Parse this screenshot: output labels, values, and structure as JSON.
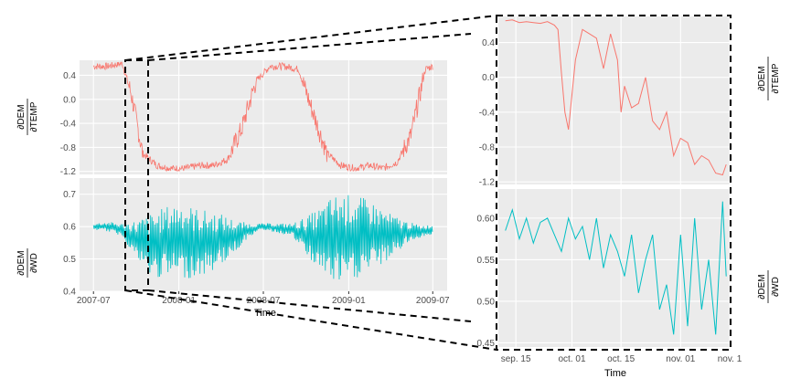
{
  "chart_data": [
    {
      "type": "line",
      "title": "",
      "xlabel": "Time",
      "x_ticks": [
        "2007-07",
        "2008-01",
        "2008-07",
        "2009-01",
        "2009-07"
      ],
      "x_range": [
        "2007-06-01",
        "2009-08-01"
      ],
      "panels": [
        {
          "name": "TEMP",
          "ylabel_numerator": "∂DEM",
          "ylabel_denominator": "∂TEMP",
          "y_ticks": [
            "0.4",
            "0.0",
            "-0.4",
            "-0.8",
            "-1.2"
          ],
          "ylim": [
            -1.25,
            0.65
          ],
          "color": "#F8766D",
          "series": [
            {
              "x": [
                "2007-07-01",
                "2007-08-01",
                "2007-09-01",
                "2007-09-20",
                "2007-10-15",
                "2007-11-15",
                "2007-12-15",
                "2008-01-15",
                "2008-02-15",
                "2008-03-15",
                "2008-04-15",
                "2008-05-15",
                "2008-06-15",
                "2008-07-15",
                "2008-08-15",
                "2008-09-15",
                "2008-10-15",
                "2008-11-15",
                "2008-12-15",
                "2009-01-15",
                "2009-02-15",
                "2009-03-15",
                "2009-04-15",
                "2009-05-15",
                "2009-06-15",
                "2009-07-01"
              ],
              "values": [
                0.55,
                0.55,
                0.6,
                0.1,
                -0.9,
                -1.1,
                -1.15,
                -1.15,
                -1.1,
                -1.1,
                -1.0,
                -0.5,
                0.3,
                0.55,
                0.55,
                0.5,
                -0.2,
                -0.9,
                -1.1,
                -1.15,
                -1.1,
                -1.15,
                -1.05,
                -0.6,
                0.5,
                0.55
              ]
            }
          ]
        },
        {
          "name": "WD",
          "ylabel_numerator": "∂DEM",
          "ylabel_denominator": "∂WD",
          "y_ticks": [
            "0.7",
            "0.6",
            "0.5",
            "0.4"
          ],
          "ylim": [
            0.4,
            0.75
          ],
          "color": "#00BFC4",
          "series": [
            {
              "x": [
                "2007-07-01",
                "2007-08-01",
                "2007-09-01",
                "2007-10-01",
                "2007-11-01",
                "2007-12-01",
                "2008-01-01",
                "2008-02-01",
                "2008-03-01",
                "2008-04-01",
                "2008-05-01",
                "2008-06-01",
                "2008-07-01",
                "2008-08-01",
                "2008-09-01",
                "2008-10-01",
                "2008-11-01",
                "2008-12-01",
                "2009-01-01",
                "2009-02-01",
                "2009-03-01",
                "2009-04-01",
                "2009-05-01",
                "2009-06-01",
                "2009-07-01"
              ],
              "center": [
                0.6,
                0.6,
                0.59,
                0.56,
                0.54,
                0.55,
                0.56,
                0.55,
                0.55,
                0.56,
                0.57,
                0.59,
                0.6,
                0.595,
                0.59,
                0.57,
                0.56,
                0.56,
                0.56,
                0.57,
                0.57,
                0.57,
                0.58,
                0.585,
                0.59
              ],
              "amplitude": [
                0.01,
                0.015,
                0.02,
                0.06,
                0.1,
                0.11,
                0.12,
                0.11,
                0.1,
                0.08,
                0.05,
                0.02,
                0.01,
                0.015,
                0.02,
                0.06,
                0.1,
                0.14,
                0.14,
                0.12,
                0.1,
                0.07,
                0.04,
                0.02,
                0.015
              ]
            }
          ]
        }
      ]
    },
    {
      "type": "line",
      "title": "",
      "xlabel": "Time",
      "x_ticks": [
        "sep. 15",
        "oct. 01",
        "oct. 15",
        "nov. 01",
        "nov. 1"
      ],
      "x_range": [
        "2007-09-10",
        "2007-11-15"
      ],
      "panels": [
        {
          "name": "TEMP",
          "ylabel_numerator": "∂DEM",
          "ylabel_denominator": "∂TEMP",
          "y_ticks": [
            "0.4",
            "0.0",
            "-0.4",
            "-0.8",
            "-1.2"
          ],
          "ylim": [
            -1.23,
            0.7
          ],
          "color": "#F8766D",
          "series": [
            {
              "x": [
                "2007-09-12",
                "2007-09-14",
                "2007-09-16",
                "2007-09-18",
                "2007-09-20",
                "2007-09-22",
                "2007-09-24",
                "2007-09-26",
                "2007-09-27",
                "2007-09-28",
                "2007-09-29",
                "2007-09-30",
                "2007-10-02",
                "2007-10-04",
                "2007-10-06",
                "2007-10-08",
                "2007-10-10",
                "2007-10-12",
                "2007-10-14",
                "2007-10-15",
                "2007-10-16",
                "2007-10-18",
                "2007-10-20",
                "2007-10-22",
                "2007-10-24",
                "2007-10-26",
                "2007-10-28",
                "2007-10-30",
                "2007-11-01",
                "2007-11-03",
                "2007-11-05",
                "2007-11-07",
                "2007-11-09",
                "2007-11-11",
                "2007-11-13",
                "2007-11-14"
              ],
              "values": [
                0.65,
                0.66,
                0.63,
                0.64,
                0.63,
                0.62,
                0.64,
                0.6,
                0.55,
                0.05,
                -0.4,
                -0.6,
                0.2,
                0.55,
                0.5,
                0.45,
                0.1,
                0.5,
                0.2,
                -0.4,
                -0.1,
                -0.35,
                -0.3,
                0.0,
                -0.5,
                -0.6,
                -0.4,
                -0.9,
                -0.7,
                -0.75,
                -1.0,
                -0.9,
                -0.95,
                -1.1,
                -1.12,
                -1.0
              ]
            }
          ]
        },
        {
          "name": "WD",
          "ylabel_numerator": "∂DEM",
          "ylabel_denominator": "∂WD",
          "y_ticks": [
            "0.60",
            "0.55",
            "0.50",
            "0.45"
          ],
          "ylim": [
            0.445,
            0.635
          ],
          "color": "#00BFC4",
          "series": [
            {
              "x": [
                "2007-09-12",
                "2007-09-14",
                "2007-09-16",
                "2007-09-18",
                "2007-09-20",
                "2007-09-22",
                "2007-09-24",
                "2007-09-26",
                "2007-09-28",
                "2007-09-30",
                "2007-10-02",
                "2007-10-04",
                "2007-10-06",
                "2007-10-08",
                "2007-10-10",
                "2007-10-12",
                "2007-10-14",
                "2007-10-16",
                "2007-10-18",
                "2007-10-20",
                "2007-10-22",
                "2007-10-24",
                "2007-10-26",
                "2007-10-28",
                "2007-10-30",
                "2007-11-01",
                "2007-11-03",
                "2007-11-05",
                "2007-11-07",
                "2007-11-09",
                "2007-11-11",
                "2007-11-13",
                "2007-11-14"
              ],
              "values": [
                0.585,
                0.61,
                0.575,
                0.6,
                0.57,
                0.595,
                0.6,
                0.58,
                0.56,
                0.6,
                0.575,
                0.59,
                0.55,
                0.6,
                0.54,
                0.58,
                0.56,
                0.53,
                0.58,
                0.51,
                0.55,
                0.58,
                0.49,
                0.52,
                0.46,
                0.58,
                0.47,
                0.6,
                0.49,
                0.55,
                0.46,
                0.62,
                0.53
              ]
            }
          ]
        }
      ]
    }
  ]
}
